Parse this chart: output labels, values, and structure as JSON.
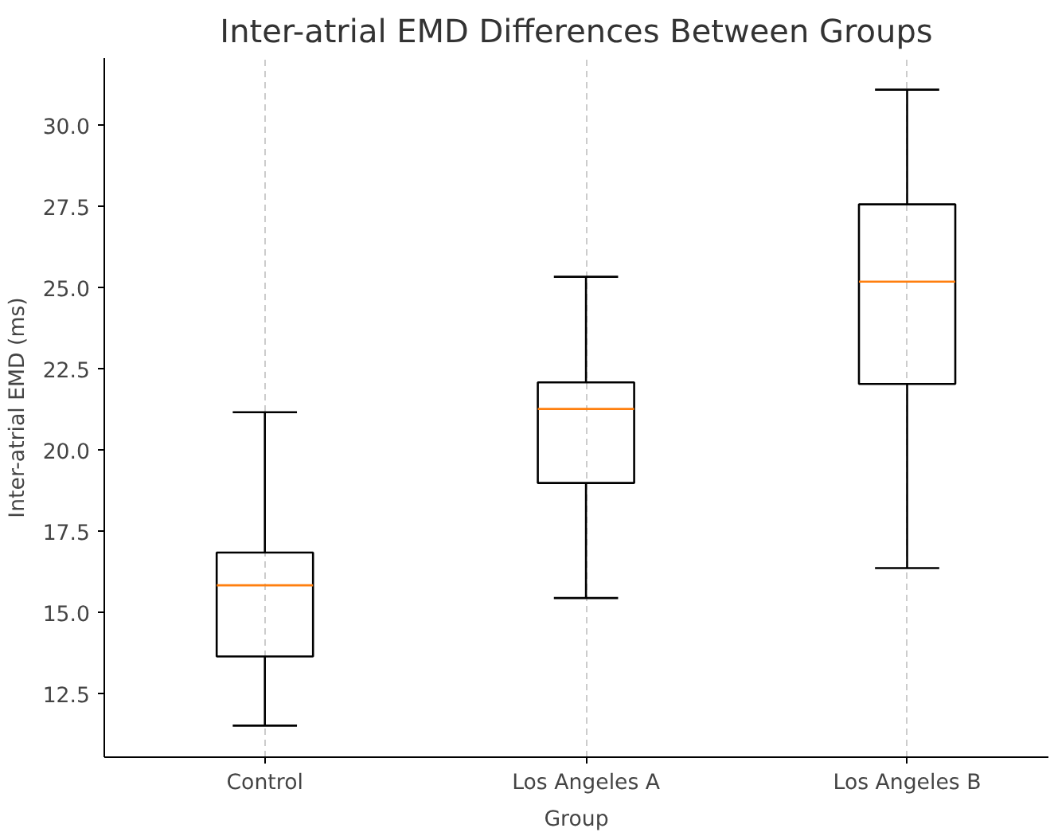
{
  "chart_data": {
    "type": "box",
    "title": "Inter-atrial EMD Differences Between Groups",
    "xlabel": "Group",
    "ylabel": "Inter-atrial EMD (ms)",
    "categories": [
      "Control",
      "Los Angeles A",
      "Los Angeles B"
    ],
    "boxes": [
      {
        "low": 11.53,
        "q1": 13.66,
        "median": 15.85,
        "q3": 16.86,
        "high": 21.18
      },
      {
        "low": 15.46,
        "q1": 19.0,
        "median": 21.28,
        "q3": 22.1,
        "high": 25.35
      },
      {
        "low": 16.38,
        "q1": 22.05,
        "median": 25.2,
        "q3": 27.58,
        "high": 31.11
      }
    ],
    "color": "#000000",
    "ylim": [
      10.56,
      32.08
    ],
    "yticks": [
      12.5,
      {
        "value": 15,
        "label": "15.0"
      },
      17.5,
      {
        "value": 20,
        "label": "20.0"
      },
      22.5,
      {
        "value": 25,
        "label": "25.0"
      },
      27.5,
      {
        "value": 30,
        "label": "30.0"
      }
    ],
    "grid": "x"
  }
}
